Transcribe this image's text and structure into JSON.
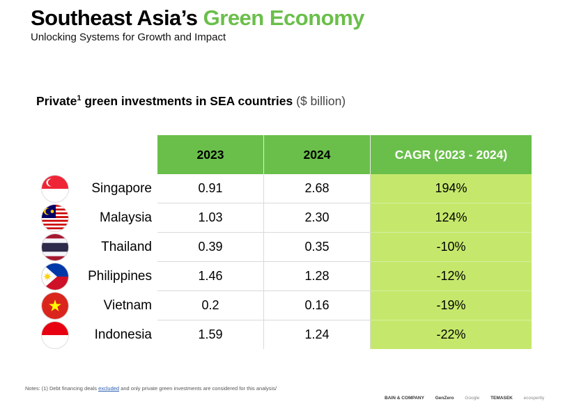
{
  "header": {
    "title_main": "Southeast Asia’s",
    "title_accent": "Green Economy",
    "subtitle": "Unlocking Systems for Growth and Impact"
  },
  "chart_data": {
    "type": "table",
    "title_main": "Private",
    "title_sup": "1",
    "title_rest": " green investments in SEA countries",
    "title_unit": "($ billion)",
    "columns": [
      "2023",
      "2024",
      "CAGR (2023 - 2024)"
    ],
    "rows": [
      {
        "country": "Singapore",
        "flag": "singapore-flag-icon",
        "v2023": "0.91",
        "v2024": "2.68",
        "cagr": "194%"
      },
      {
        "country": "Malaysia",
        "flag": "malaysia-flag-icon",
        "v2023": "1.03",
        "v2024": "2.30",
        "cagr": "124%"
      },
      {
        "country": "Thailand",
        "flag": "thailand-flag-icon",
        "v2023": "0.39",
        "v2024": "0.35",
        "cagr": "-10%"
      },
      {
        "country": "Philippines",
        "flag": "philippines-flag-icon",
        "v2023": "1.46",
        "v2024": "1.28",
        "cagr": "-12%"
      },
      {
        "country": "Vietnam",
        "flag": "vietnam-flag-icon",
        "v2023": "0.2",
        "v2024": "0.16",
        "cagr": "-19%"
      },
      {
        "country": "Indonesia",
        "flag": "indonesia-flag-icon",
        "v2023": "1.59",
        "v2024": "1.24",
        "cagr": "-22%"
      }
    ],
    "colors": {
      "header_green": "#6abf4b",
      "cagr_fill": "#c5e86c",
      "title_accent": "#6abf4b"
    }
  },
  "footer": {
    "notes_pre": "Notes: (1) Debt financing deals ",
    "notes_link": "excluded",
    "notes_post": " and only private green investments are considered for this analysis/",
    "logos": [
      "BAIN & COMPANY",
      "GenZero",
      "Google",
      "TEMASEK",
      "ecosperity"
    ]
  }
}
